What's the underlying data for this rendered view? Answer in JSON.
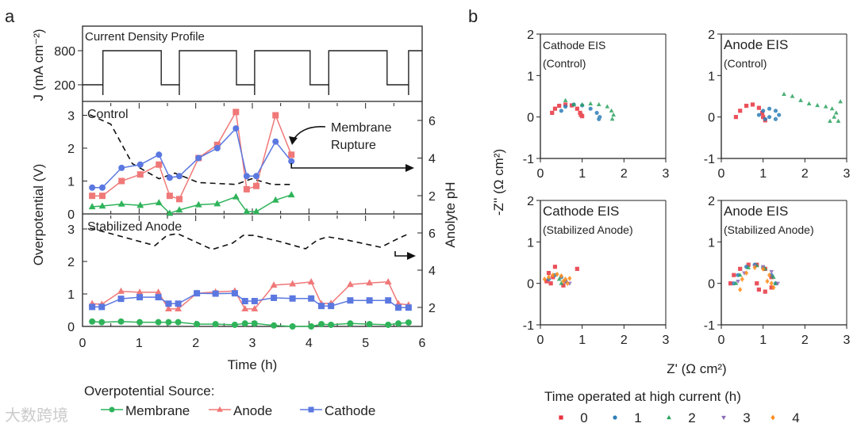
{
  "chart_data": [
    {
      "id": "a-current",
      "type": "line",
      "panel_label": "a",
      "title": "Current Density Profile",
      "ylabel": "J (mA cm⁻²)",
      "yticks": [
        200,
        800
      ],
      "ylim": [
        0,
        1100
      ],
      "xlim": [
        0,
        6
      ],
      "step_x": [
        0,
        0.36,
        0.36,
        1.39,
        1.39,
        1.71,
        1.71,
        2.72,
        2.72,
        3.04,
        3.04,
        4.02,
        4.02,
        4.35,
        4.35,
        5.38,
        5.38,
        5.76,
        5.76,
        6
      ],
      "step_y": [
        200,
        200,
        800,
        800,
        200,
        200,
        800,
        800,
        200,
        200,
        800,
        800,
        200,
        200,
        800,
        800,
        200,
        200,
        800,
        800
      ]
    },
    {
      "id": "a-control",
      "type": "line",
      "title": "Control",
      "ylabel": "Overpotential (V)",
      "y2label": "Anolyte pH",
      "ylim": [
        0,
        3.4
      ],
      "yticks": [
        0,
        1,
        2,
        3
      ],
      "y2ticks": [
        2,
        4,
        6
      ],
      "xlim": [
        0,
        6
      ],
      "annotation": [
        "Membrane",
        "Rupture"
      ],
      "x": [
        0.17,
        0.35,
        0.69,
        1.02,
        1.35,
        1.54,
        1.71,
        2.05,
        2.38,
        2.71,
        2.9,
        3.07,
        3.41,
        3.69
      ],
      "series": [
        {
          "name": "Membrane",
          "marker": "triangle",
          "color": "#2fb35a",
          "values": [
            0.22,
            0.24,
            0.3,
            0.26,
            0.34,
            0.02,
            0.12,
            0.28,
            0.31,
            0.52,
            0.07,
            0.07,
            0.42,
            0.58
          ]
        },
        {
          "name": "Anode",
          "marker": "square",
          "color": "#f07878",
          "values": [
            0.55,
            0.55,
            1.0,
            1.2,
            1.5,
            0.55,
            0.45,
            1.7,
            2.1,
            3.1,
            0.75,
            0.85,
            3.0,
            1.8
          ]
        },
        {
          "name": "Cathode",
          "marker": "circle",
          "color": "#5b78e0",
          "values": [
            0.8,
            0.8,
            1.4,
            1.5,
            1.8,
            1.1,
            1.15,
            1.7,
            2.0,
            2.6,
            1.15,
            1.15,
            2.2,
            1.6
          ]
        }
      ],
      "ph": {
        "x": [
          0.13,
          0.5,
          0.88,
          1.35,
          1.63,
          2.05,
          2.71,
          2.99,
          3.35,
          3.69
        ],
        "values": [
          6.3,
          5.8,
          3.7,
          2.9,
          3.2,
          2.7,
          2.6,
          2.9,
          2.6,
          2.6
        ]
      }
    },
    {
      "id": "a-stabilized",
      "type": "line",
      "title": "Stabilized Anode",
      "xlabel": "Time (h)",
      "xticks": [
        0,
        1,
        2,
        3,
        4,
        5,
        6
      ],
      "ylim": [
        0,
        3.4
      ],
      "yticks": [
        0,
        1,
        2,
        3
      ],
      "y2ticks": [
        2,
        4,
        6
      ],
      "xlim": [
        0,
        6
      ],
      "x": [
        0.17,
        0.34,
        0.68,
        1.01,
        1.34,
        1.52,
        1.69,
        2.02,
        2.35,
        2.69,
        2.87,
        3.04,
        3.38,
        3.71,
        4.04,
        4.22,
        4.39,
        4.73,
        5.07,
        5.4,
        5.58,
        5.76
      ],
      "series": [
        {
          "name": "Membrane",
          "marker": "circle",
          "color": "#2fb35a",
          "values": [
            0.15,
            0.13,
            0.15,
            0.13,
            0.13,
            0.13,
            0.13,
            0.07,
            0.07,
            0.05,
            0.09,
            0.09,
            0.03,
            0.0,
            0.0,
            0.07,
            0.05,
            0.09,
            0.07,
            0.05,
            0.09,
            0.12
          ]
        },
        {
          "name": "Anode",
          "marker": "triangle",
          "color": "#f07878",
          "values": [
            0.7,
            0.68,
            1.08,
            1.05,
            1.05,
            0.54,
            0.54,
            1.02,
            1.06,
            1.09,
            0.54,
            0.54,
            1.27,
            1.31,
            1.37,
            0.7,
            0.71,
            1.29,
            1.34,
            1.37,
            0.7,
            0.66
          ]
        },
        {
          "name": "Cathode",
          "marker": "square",
          "color": "#5b78e0",
          "values": [
            0.6,
            0.6,
            0.85,
            0.9,
            0.9,
            0.7,
            0.7,
            1.02,
            1.01,
            1.02,
            0.78,
            0.78,
            0.88,
            0.86,
            0.86,
            0.63,
            0.63,
            0.8,
            0.8,
            0.8,
            0.58,
            0.58
          ]
        }
      ],
      "ph": {
        "x": [
          0.13,
          0.5,
          1.28,
          1.49,
          1.68,
          2.29,
          2.65,
          2.84,
          3.03,
          3.49,
          3.94,
          4.15,
          4.33,
          4.67,
          5.27,
          5.55,
          5.73
        ],
        "values": [
          6.26,
          5.96,
          5.32,
          5.87,
          5.96,
          5.11,
          5.45,
          5.87,
          5.87,
          5.53,
          5.15,
          5.62,
          5.79,
          5.62,
          5.23,
          5.66,
          5.91
        ]
      }
    },
    {
      "id": "b-eis",
      "type": "scatter",
      "panel_label": "b",
      "xlabel": "Z' (Ω cm²)",
      "ylabel": "-Z'' (Ω cm²)",
      "xlim": [
        0,
        3
      ],
      "ylim": [
        -1,
        2
      ],
      "xticks": [
        0,
        1,
        2,
        3
      ],
      "yticks": [
        -1,
        0,
        1,
        2
      ],
      "legend_title": "Time operated at high current (h)",
      "legend": [
        {
          "label": "0",
          "color": "#e8333f",
          "marker": "square"
        },
        {
          "label": "1",
          "color": "#2f7fb8",
          "marker": "circle"
        },
        {
          "label": "2",
          "color": "#2ca25f",
          "marker": "triangle"
        },
        {
          "label": "3",
          "color": "#8b6bb8",
          "marker": "triangle-down"
        },
        {
          "label": "4",
          "color": "#ff8c1a",
          "marker": "diamond"
        }
      ],
      "subplots": [
        {
          "title": "Cathode EIS",
          "subtitle": "(Control)",
          "series": [
            {
              "time": "0",
              "points": [
                [
                  0.28,
                  0.1
                ],
                [
                  0.35,
                  0.2
                ],
                [
                  0.45,
                  0.27
                ],
                [
                  0.6,
                  0.3
                ],
                [
                  0.75,
                  0.28
                ],
                [
                  0.88,
                  0.2
                ],
                [
                  0.95,
                  0.1
                ],
                [
                  1.0,
                  0.02
                ],
                [
                  0.97,
                  0.05
                ]
              ]
            },
            {
              "time": "1",
              "points": [
                [
                  0.5,
                  0.15
                ],
                [
                  0.6,
                  0.25
                ],
                [
                  0.8,
                  0.3
                ],
                [
                  1.0,
                  0.28
                ],
                [
                  1.2,
                  0.2
                ],
                [
                  1.35,
                  0.1
                ],
                [
                  1.42,
                  0.0
                ],
                [
                  1.4,
                  -0.05
                ]
              ]
            },
            {
              "time": "2",
              "points": [
                [
                  0.6,
                  0.4
                ],
                [
                  0.8,
                  0.3
                ],
                [
                  1.0,
                  0.3
                ],
                [
                  1.2,
                  0.32
                ],
                [
                  1.4,
                  0.3
                ],
                [
                  1.6,
                  0.25
                ],
                [
                  1.7,
                  0.15
                ],
                [
                  1.75,
                  0.05
                ],
                [
                  1.72,
                  -0.05
                ]
              ]
            }
          ]
        },
        {
          "title": "Anode EIS",
          "subtitle": "(Control)",
          "series": [
            {
              "time": "0",
              "points": [
                [
                  0.35,
                  0
                ],
                [
                  0.45,
                  0.15
                ],
                [
                  0.6,
                  0.27
                ],
                [
                  0.75,
                  0.3
                ],
                [
                  0.9,
                  0.22
                ],
                [
                  0.98,
                  0.1
                ],
                [
                  1.0,
                  0.0
                ],
                [
                  1.05,
                  -0.08
                ]
              ]
            },
            {
              "time": "1",
              "points": [
                [
                  0.9,
                  0.05
                ],
                [
                  1.0,
                  0.15
                ],
                [
                  1.15,
                  0.2
                ],
                [
                  1.3,
                  0.15
                ],
                [
                  1.38,
                  0.05
                ],
                [
                  1.3,
                  -0.05
                ],
                [
                  1.15,
                  0.0
                ],
                [
                  1.05,
                  -0.05
                ]
              ]
            },
            {
              "time": "2",
              "points": [
                [
                  1.5,
                  0.55
                ],
                [
                  1.7,
                  0.5
                ],
                [
                  1.9,
                  0.4
                ],
                [
                  2.1,
                  0.32
                ],
                [
                  2.3,
                  0.28
                ],
                [
                  2.5,
                  0.25
                ],
                [
                  2.65,
                  0.2
                ],
                [
                  2.75,
                  0.1
                ],
                [
                  2.7,
                  0.0
                ],
                [
                  2.8,
                  -0.1
                ],
                [
                  2.6,
                  -0.1
                ],
                [
                  2.85,
                  0.37
                ]
              ]
            }
          ]
        },
        {
          "title": "Cathode EIS",
          "subtitle": "(Stabilized Anode)",
          "series": [
            {
              "time": "0",
              "points": [
                [
                  0.15,
                  0.05
                ],
                [
                  0.25,
                  0.0
                ],
                [
                  0.35,
                  0.4
                ],
                [
                  0.2,
                  0.25
                ],
                [
                  0.55,
                  -0.05
                ],
                [
                  0.88,
                  0.35
                ],
                [
                  0.3,
                  0.15
                ]
              ]
            },
            {
              "time": "1",
              "points": [
                [
                  0.2,
                  0.1
                ],
                [
                  0.35,
                  0.2
                ],
                [
                  0.5,
                  0.15
                ],
                [
                  0.6,
                  0.05
                ]
              ]
            },
            {
              "time": "2",
              "points": [
                [
                  0.5,
                  0.0
                ],
                [
                  0.45,
                  0.1
                ]
              ]
            },
            {
              "time": "3",
              "points": [
                [
                  0.7,
                  0.0
                ],
                [
                  0.6,
                  0.05
                ]
              ]
            },
            {
              "time": "4",
              "points": [
                [
                  0.1,
                  0.1
                ],
                [
                  0.2,
                  0.15
                ],
                [
                  0.3,
                  0.2
                ],
                [
                  0.4,
                  0.22
                ],
                [
                  0.5,
                  0.18
                ],
                [
                  0.6,
                  0.1
                ],
                [
                  0.65,
                  0.0
                ],
                [
                  0.55,
                  0.05
                ],
                [
                  0.7,
                  0.12
                ]
              ]
            }
          ]
        },
        {
          "title": "Anode EIS",
          "subtitle": "(Stabilized Anode)",
          "series": [
            {
              "time": "0",
              "points": [
                [
                  0.22,
                  0.0
                ],
                [
                  0.3,
                  0.2
                ],
                [
                  0.45,
                  0.35
                ],
                [
                  0.65,
                  0.45
                ],
                [
                  0.85,
                  0.45
                ],
                [
                  1.05,
                  0.35
                ],
                [
                  1.2,
                  0.15
                ],
                [
                  1.2,
                  -0.1
                ],
                [
                  1.05,
                  -0.2
                ],
                [
                  0.9,
                  -0.15
                ],
                [
                  0.85,
                  0.0
                ]
              ]
            },
            {
              "time": "1",
              "points": [
                [
                  0.3,
                  0.0
                ],
                [
                  0.4,
                  0.2
                ],
                [
                  0.6,
                  0.4
                ],
                [
                  0.8,
                  0.45
                ],
                [
                  1.0,
                  0.38
                ],
                [
                  1.2,
                  0.2
                ],
                [
                  1.3,
                  0.0
                ]
              ]
            },
            {
              "time": "2",
              "points": [
                [
                  0.35,
                  0.0
                ],
                [
                  0.45,
                  0.2
                ],
                [
                  0.65,
                  0.38
                ],
                [
                  0.85,
                  0.43
                ],
                [
                  1.05,
                  0.35
                ],
                [
                  1.25,
                  0.15
                ],
                [
                  1.3,
                  0.0
                ]
              ]
            },
            {
              "time": "3",
              "points": [
                [
                  0.4,
                  0.05
                ],
                [
                  0.55,
                  0.25
                ],
                [
                  0.8,
                  0.42
                ],
                [
                  1.0,
                  0.4
                ],
                [
                  1.2,
                  0.28
                ],
                [
                  1.35,
                  0.0
                ]
              ]
            },
            {
              "time": "4",
              "points": [
                [
                  0.45,
                  -0.15
                ],
                [
                  0.5,
                  0.1
                ],
                [
                  0.6,
                  0.25
                ],
                [
                  0.8,
                  0.38
                ],
                [
                  1.0,
                  0.35
                ],
                [
                  1.15,
                  0.2
                ],
                [
                  1.2,
                  0.0
                ],
                [
                  1.1,
                  0.05
                ],
                [
                  1.25,
                  -0.1
                ]
              ]
            }
          ]
        }
      ]
    }
  ],
  "legend_a": {
    "title": "Overpotential Source:",
    "items": [
      {
        "label": "Membrane",
        "color": "#2fb35a",
        "marker": "circle"
      },
      {
        "label": "Anode",
        "color": "#f07878",
        "marker": "triangle"
      },
      {
        "label": "Cathode",
        "color": "#5b78e0",
        "marker": "square"
      }
    ]
  },
  "watermark": "大数跨境"
}
